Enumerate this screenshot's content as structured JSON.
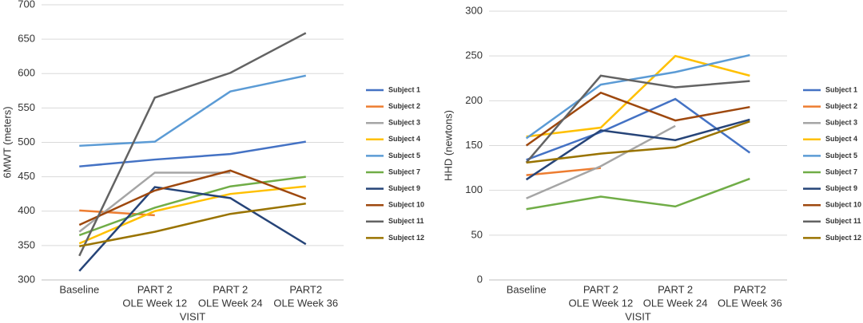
{
  "chart_data": [
    {
      "type": "line",
      "ylabel": "6MWT (meters)",
      "xlabel": "VISIT",
      "categories": [
        [
          "Baseline"
        ],
        [
          "PART 2",
          "OLE Week 12"
        ],
        [
          "PART 2",
          "OLE Week 24"
        ],
        [
          "PART2",
          "OLE Week 36"
        ]
      ],
      "ylim": [
        300,
        700
      ],
      "yticks": [
        300,
        350,
        400,
        450,
        500,
        550,
        600,
        650,
        700
      ],
      "grid": true,
      "series": [
        {
          "name": "Subject 1",
          "color": "#4472c4",
          "values": [
            465,
            475,
            483,
            501
          ]
        },
        {
          "name": "Subject 2",
          "color": "#ed7d31",
          "values": [
            401,
            394,
            null,
            null
          ]
        },
        {
          "name": "Subject 3",
          "color": "#a5a5a5",
          "values": [
            370,
            456,
            456,
            null
          ]
        },
        {
          "name": "Subject 4",
          "color": "#ffc000",
          "values": [
            353,
            400,
            425,
            436
          ]
        },
        {
          "name": "Subject 5",
          "color": "#5b9bd5",
          "values": [
            495,
            501,
            574,
            597
          ]
        },
        {
          "name": "Subject 7",
          "color": "#70ad47",
          "values": [
            365,
            405,
            436,
            450
          ]
        },
        {
          "name": "Subject 9",
          "color": "#264478",
          "values": [
            313,
            435,
            419,
            352
          ]
        },
        {
          "name": "Subject 10",
          "color": "#9e480e",
          "values": [
            380,
            430,
            459,
            418
          ]
        },
        {
          "name": "Subject 11",
          "color": "#636363",
          "values": [
            335,
            565,
            601,
            659
          ]
        },
        {
          "name": "Subject 12",
          "color": "#997300",
          "values": [
            349,
            370,
            396,
            411
          ]
        }
      ]
    },
    {
      "type": "line",
      "ylabel": "HHD (newtons)",
      "xlabel": "VISIT",
      "categories": [
        [
          "Baseline"
        ],
        [
          "PART 2",
          "OLE Week 12"
        ],
        [
          "PART 2",
          "OLE Week 24"
        ],
        [
          "PART2",
          "OLE Week 36"
        ]
      ],
      "ylim": [
        0,
        300
      ],
      "yticks": [
        0,
        50,
        100,
        150,
        200,
        250,
        300
      ],
      "grid": true,
      "series": [
        {
          "name": "Subject 1",
          "color": "#4472c4",
          "values": [
            134,
            165,
            202,
            142
          ]
        },
        {
          "name": "Subject 2",
          "color": "#ed7d31",
          "values": [
            117,
            125,
            null,
            null
          ]
        },
        {
          "name": "Subject 3",
          "color": "#a5a5a5",
          "values": [
            91,
            127,
            172,
            null
          ]
        },
        {
          "name": "Subject 4",
          "color": "#ffc000",
          "values": [
            160,
            170,
            250,
            228
          ]
        },
        {
          "name": "Subject 5",
          "color": "#5b9bd5",
          "values": [
            158,
            218,
            232,
            251
          ]
        },
        {
          "name": "Subject 7",
          "color": "#70ad47",
          "values": [
            79,
            93,
            82,
            113
          ]
        },
        {
          "name": "Subject 9",
          "color": "#264478",
          "values": [
            112,
            167,
            156,
            179
          ]
        },
        {
          "name": "Subject 10",
          "color": "#9e480e",
          "values": [
            150,
            209,
            178,
            193
          ]
        },
        {
          "name": "Subject 11",
          "color": "#636363",
          "values": [
            131,
            228,
            215,
            222
          ]
        },
        {
          "name": "Subject 12",
          "color": "#997300",
          "values": [
            131,
            141,
            148,
            177
          ]
        }
      ]
    }
  ]
}
